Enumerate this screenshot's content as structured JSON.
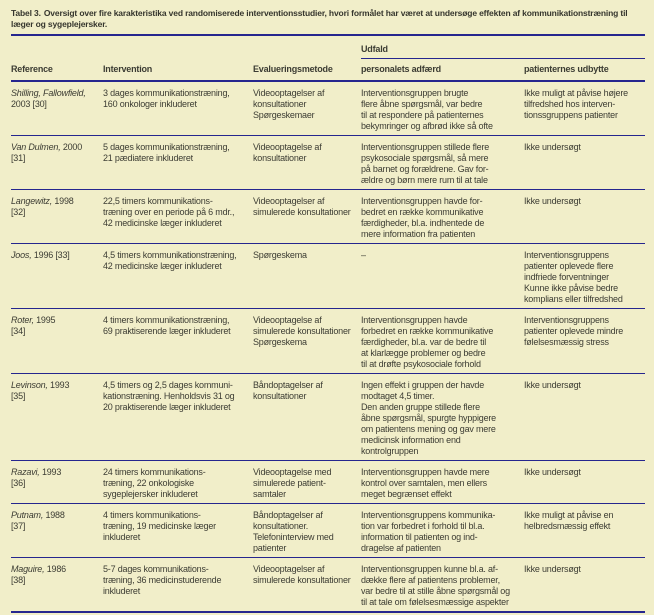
{
  "colors": {
    "background": "#f1eec9",
    "rule": "#26268e",
    "text": "#3c3c33"
  },
  "table": {
    "title_label": "Tabel 3.",
    "title_text": "Oversigt over fire karakteristika ved randomiserede interventionsstudier, hvori formålet har været at undersøge effekten af kommunikationstræning til læger og sygeplejersker.",
    "outcome_group_header": "Udfald",
    "columns": {
      "reference": "Reference",
      "intervention": "Intervention",
      "evaluation": "Evalueringsmetode",
      "staff_behavior": "personalets adfærd",
      "patient_outcome": "patienternes udbytte"
    },
    "rows": [
      {
        "ref_name": "Shilling, Fallowfield,",
        "ref_rest": "\n2003 [30]",
        "intervention": "3 dages kommunikationstræning,\n160 onkologer inkluderet",
        "evaluation": "Videooptagelser af\nkonsultationer\nSpørgeskemaer",
        "staff_behavior": "Interventionsgruppen brugte\nflere åbne spørgsmål, var bedre\ntil at respondere på patienternes\nbekymringer og afbrød ikke så ofte",
        "patient_outcome": "Ikke muligt at påvise højere\ntilfredshed hos interven-\ntionssgruppens patienter"
      },
      {
        "ref_name": "Van Dulmen,",
        "ref_rest": "2000\n[31]",
        "intervention": "5 dages kommunikationstræning,\n21 pædiatere inkluderet",
        "evaluation": "Videooptagelse af\nkonsultationer",
        "staff_behavior": "Interventionsgruppen stillede flere\npsykosociale spørgsmål, så mere\npå barnet og forældrene. Gav for-\nældre og børn mere rum til at tale",
        "patient_outcome": "Ikke undersøgt"
      },
      {
        "ref_name": "Langewitz,",
        "ref_rest": "1998\n[32]",
        "intervention": "22,5 timers kommunikations-\ntræning over en periode på 6 mdr.,\n42 medicinske læger inkluderet",
        "evaluation": "Videooptagelser af\nsimulerede konsultationer",
        "staff_behavior": "Interventionsgruppen havde for-\nbedret en række kommunikative\nfærdigheder, bl.a. indhentede de\nmere information fra patienten",
        "patient_outcome": "Ikke undersøgt"
      },
      {
        "ref_name": "Joos,",
        "ref_rest": "1996 [33]",
        "intervention": "4,5 timers kommunikationstræning,\n42 medicinske læger inkluderet",
        "evaluation": "Spørgeskema",
        "staff_behavior": "–",
        "patient_outcome": "Interventionsgruppens\npatienter oplevede flere\nindfriede forventninger\nKunne ikke påvise bedre\nkomplians eller tilfredshed"
      },
      {
        "ref_name": "Roter,",
        "ref_rest": "1995\n[34]",
        "intervention": "4 timers kommunikationstræning,\n69 praktiserende læger inkluderet",
        "evaluation": "Videooptagelse af\nsimulerede konsultationer\nSpørgeskema",
        "staff_behavior": "Interventionsgruppen havde\nforbedret en række kommunikative\nfærdigheder, bl.a. var de bedre til\nat klarlægge problemer og bedre\ntil at drøfte psykosociale forhold",
        "patient_outcome": "Interventionsgruppens\npatienter oplevede mindre\nfølelsesmæssig stress"
      },
      {
        "ref_name": "Levinson,",
        "ref_rest": "1993\n[35]",
        "intervention": "4,5 timers og 2,5 dages kommuni-\nkationstræning. Henholdsvis 31 og\n20 praktiserende læger inkluderet",
        "evaluation": "Båndoptagelser af\nkonsultationer",
        "staff_behavior": "Ingen effekt i gruppen der havde\nmodtaget 4,5 timer.\nDen anden gruppe stillede flere\nåbne spørgsmål, spurgte hyppigere\nom patientens mening og gav mere\nmedicinsk information end\nkontrolgruppen",
        "patient_outcome": "Ikke undersøgt"
      },
      {
        "ref_name": "Razavi,",
        "ref_rest": "1993\n[36]",
        "intervention": "24 timers kommunikations-\ntræning, 22 onkologiske\nsygeplejersker inkluderet",
        "evaluation": "Videooptagelse med\nsimulerede patient-\nsamtaler",
        "staff_behavior": "Interventionsgruppen havde mere\nkontrol over samtalen, men ellers\nmeget begrænset effekt",
        "patient_outcome": "Ikke undersøgt"
      },
      {
        "ref_name": "Putnam,",
        "ref_rest": "1988\n[37]",
        "intervention": "4 timers kommunikations-\ntræning, 19 medicinske læger\ninkluderet",
        "evaluation": "Båndoptagelser af\nkonsultationer.\nTelefoninterview med\npatienter",
        "staff_behavior": "Interventionsgruppens kommunika-\ntion var forbedret i forhold til bl.a.\ninformation til patienten og ind-\ndragelse af patienten",
        "patient_outcome": "Ikke muligt at påvise en\nhelbredsmæssig effekt"
      },
      {
        "ref_name": "Maguire,",
        "ref_rest": "1986\n[38]",
        "intervention": "5-7 dages kommunikations-\ntræning, 36 medicinstuderende\ninkluderet",
        "evaluation": "Videooptagelser af\nsimulerede konsultationer",
        "staff_behavior": "Interventionsgruppen kunne bl.a. af-\ndække flere af patientens problemer,\nvar bedre til at stille åbne spørgsmål og\ntil at tale om følelsesmæssige aspekter",
        "patient_outcome": "Ikke undersøgt"
      }
    ]
  }
}
